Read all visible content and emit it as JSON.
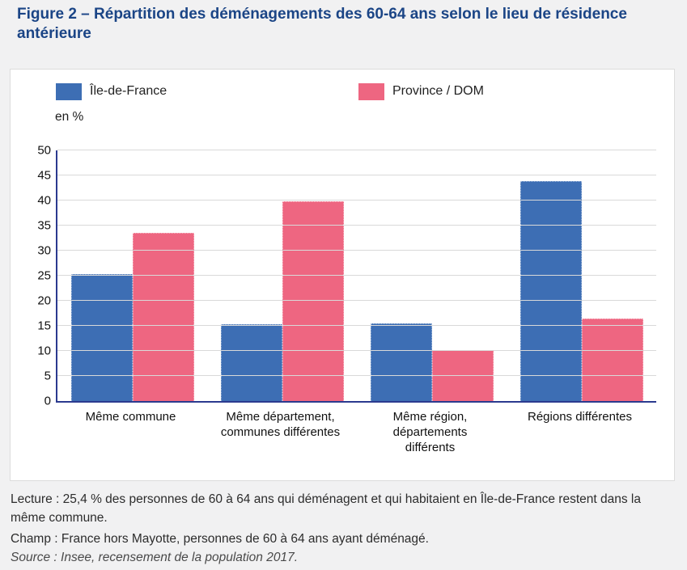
{
  "title": "Figure 2 – Répartition des déménagements des 60-64 ans selon le lieu de résidence antérieure",
  "legend": [
    {
      "label": "Île-de-France",
      "color": "#3d6eb4"
    },
    {
      "label": "Province / DOM",
      "color": "#ee6681"
    }
  ],
  "chart_data": {
    "type": "bar",
    "title": "Figure 2 – Répartition des déménagements des 60-64 ans selon le lieu de résidence antérieure",
    "unit_label": "en %",
    "categories": [
      "Même commune",
      "Même département,\ncommunes différentes",
      "Même région,\ndépartements\ndifférents",
      "Régions différentes"
    ],
    "series": [
      {
        "name": "Île-de-France",
        "color": "#3d6eb4",
        "values": [
          25.4,
          15.3,
          15.5,
          43.8
        ]
      },
      {
        "name": "Province / DOM",
        "color": "#ee6681",
        "values": [
          33.6,
          39.8,
          10.2,
          16.4
        ]
      }
    ],
    "xlabel": "",
    "ylabel": "en %",
    "ylim": [
      0,
      50
    ],
    "yticks": [
      0,
      5,
      10,
      15,
      20,
      25,
      30,
      35,
      40,
      45,
      50
    ],
    "grid": true,
    "legend_position": "top"
  },
  "notes": {
    "lecture": "Lecture : 25,4 % des personnes de 60 à 64 ans qui déménagent et qui habitaient en Île-de-France restent dans la même commune.",
    "champ": "Champ : France hors Mayotte, personnes de 60 à 64 ans ayant déménagé.",
    "source": "Source : Insee, recensement de la population 2017."
  },
  "colors": {
    "title_text": "#1b4586",
    "axis": "#2b3a8f",
    "gridline": "#d9d9d9",
    "panel_border": "#dcdcdc",
    "page_background": "#f1f1f2"
  }
}
